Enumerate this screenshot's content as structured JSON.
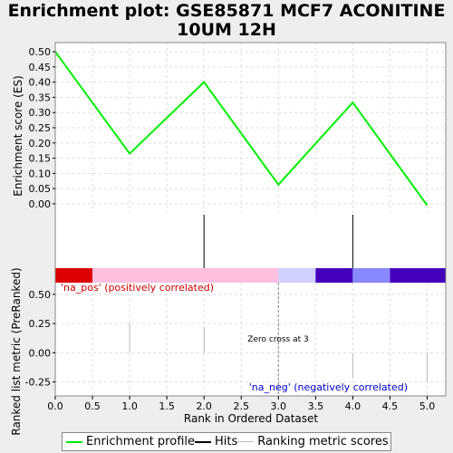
{
  "title_lines": [
    "Enrichment plot: GSE85871 MCF7 ACONITINE",
    "10UM 12H"
  ],
  "chart_data": {
    "type": "line",
    "title": "Enrichment plot: GSE85871 MCF7 ACONITINE 10UM 12H",
    "xlabel": "Rank in Ordered Dataset",
    "xlim": [
      0,
      5.25
    ],
    "x_ticks": [
      "0.0",
      "0.5",
      "1.0",
      "1.5",
      "2.0",
      "2.5",
      "3.0",
      "3.5",
      "4.0",
      "4.5",
      "5.0"
    ],
    "es": {
      "ylabel": "Enrichment score (ES)",
      "ylim": [
        -0.03,
        0.53
      ],
      "y_ticks": [
        "0.50",
        "0.45",
        "0.40",
        "0.35",
        "0.30",
        "0.25",
        "0.20",
        "0.15",
        "0.10",
        "0.05",
        "0.00"
      ],
      "x": [
        0,
        1,
        2,
        3,
        4,
        5
      ],
      "y": [
        0.5,
        0.165,
        0.4,
        0.063,
        0.333,
        -0.005
      ],
      "color": "#00ee00"
    },
    "hits": [
      0,
      2,
      4
    ],
    "heatmap": [
      {
        "start": 0.0,
        "end": 0.5,
        "color": "#dd0000"
      },
      {
        "start": 0.5,
        "end": 3.0,
        "color": "#ffc0e0"
      },
      {
        "start": 3.0,
        "end": 3.5,
        "color": "#d0d0ff"
      },
      {
        "start": 3.5,
        "end": 4.0,
        "color": "#4400bb"
      },
      {
        "start": 4.0,
        "end": 4.5,
        "color": "#8888ff"
      },
      {
        "start": 4.5,
        "end": 5.25,
        "color": "#4400bb"
      }
    ],
    "ranked": {
      "ylabel": "Ranked list metric (PreRanked)",
      "ylim": [
        -0.37,
        0.6
      ],
      "y_ticks": [
        "0.50",
        "0.25",
        "0.00",
        "-0.25"
      ],
      "bars": [
        {
          "x": 1,
          "y": 0.25
        },
        {
          "x": 2,
          "y": 0.22
        },
        {
          "x": 4,
          "y": -0.22
        },
        {
          "x": 5,
          "y": -0.25
        }
      ],
      "zero_cross_x": 3
    },
    "annotations": {
      "pos": "'na_pos' (positively correlated)",
      "neg": "'na_neg' (negatively correlated)",
      "zero_cross": "Zero cross at 3"
    },
    "colors": {
      "pos_text": "#cc0000",
      "neg_text": "#0000cc",
      "grid": "#dddddd"
    }
  },
  "legend": {
    "enrichment_profile": "Enrichment profile",
    "hits": "Hits",
    "ranking": "Ranking metric scores"
  }
}
